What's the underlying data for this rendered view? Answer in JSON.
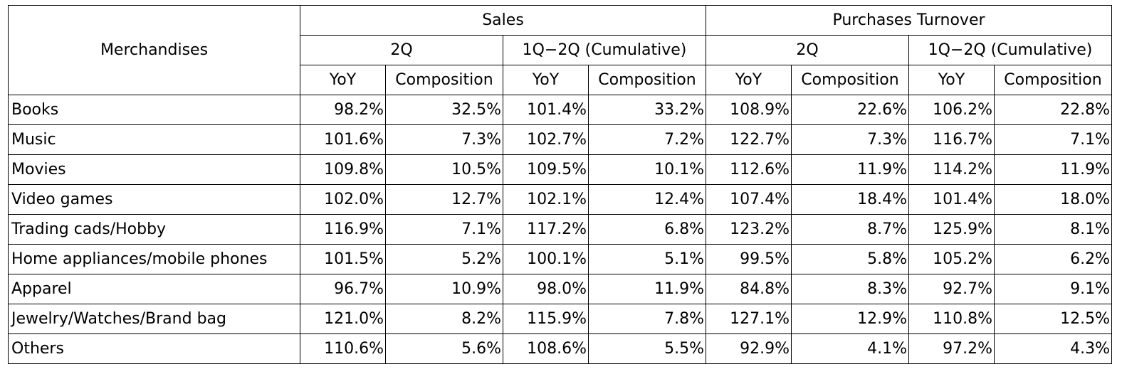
{
  "chart_data": {
    "type": "table",
    "header": {
      "row_label": "Merchandises",
      "groups": [
        {
          "name": "Sales",
          "subgroups": [
            {
              "name": "2Q",
              "columns": [
                "YoY",
                "Composition"
              ]
            },
            {
              "name": "1Q−2Q (Cumulative)",
              "columns": [
                "YoY",
                "Composition"
              ]
            }
          ]
        },
        {
          "name": "Purchases Turnover",
          "subgroups": [
            {
              "name": "2Q",
              "columns": [
                "YoY",
                "Composition"
              ]
            },
            {
              "name": "1Q−2Q (Cumulative)",
              "columns": [
                "YoY",
                "Composition"
              ]
            }
          ]
        }
      ]
    },
    "rows": [
      {
        "label": "Books",
        "values": [
          "98.2%",
          "32.5%",
          "101.4%",
          "33.2%",
          "108.9%",
          "22.6%",
          "106.2%",
          "22.8%"
        ]
      },
      {
        "label": "Music",
        "values": [
          "101.6%",
          "7.3%",
          "102.7%",
          "7.2%",
          "122.7%",
          "7.3%",
          "116.7%",
          "7.1%"
        ]
      },
      {
        "label": "Movies",
        "values": [
          "109.8%",
          "10.5%",
          "109.5%",
          "10.1%",
          "112.6%",
          "11.9%",
          "114.2%",
          "11.9%"
        ]
      },
      {
        "label": "Video games",
        "values": [
          "102.0%",
          "12.7%",
          "102.1%",
          "12.4%",
          "107.4%",
          "18.4%",
          "101.4%",
          "18.0%"
        ]
      },
      {
        "label": "Trading cads/Hobby",
        "values": [
          "116.9%",
          "7.1%",
          "117.2%",
          "6.8%",
          "123.2%",
          "8.7%",
          "125.9%",
          "8.1%"
        ]
      },
      {
        "label": "Home appliances/mobile phones",
        "values": [
          "101.5%",
          "5.2%",
          "100.1%",
          "5.1%",
          "99.5%",
          "5.8%",
          "105.2%",
          "6.2%"
        ]
      },
      {
        "label": "Apparel",
        "values": [
          "96.7%",
          "10.9%",
          "98.0%",
          "11.9%",
          "84.8%",
          "8.3%",
          "92.7%",
          "9.1%"
        ]
      },
      {
        "label": "Jewelry/Watches/Brand bag",
        "values": [
          "121.0%",
          "8.2%",
          "115.9%",
          "7.8%",
          "127.1%",
          "12.9%",
          "110.8%",
          "12.5%"
        ]
      },
      {
        "label": "Others",
        "values": [
          "110.6%",
          "5.6%",
          "108.6%",
          "5.5%",
          "92.9%",
          "4.1%",
          "97.2%",
          "4.3%"
        ]
      }
    ]
  }
}
